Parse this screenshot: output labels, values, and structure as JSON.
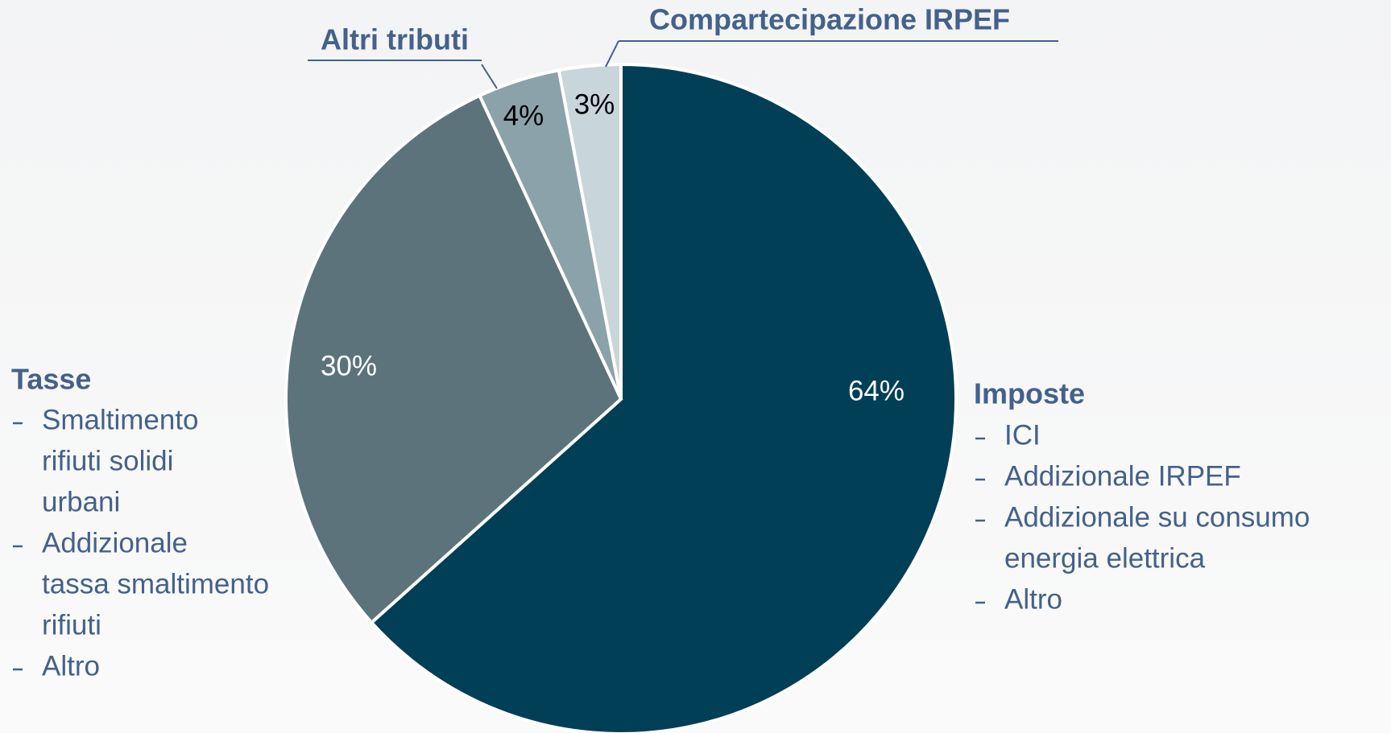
{
  "chart_data": {
    "type": "pie",
    "series": [
      {
        "name": "Imposte",
        "color": "#003f56",
        "values": [
          64
        ],
        "value_labels": [
          "64%"
        ],
        "details": [
          [
            "ICI"
          ],
          [
            "Addizionale IRPEF"
          ],
          [
            "Addizionale su consumo",
            "energia elettrica"
          ],
          [
            "Altro"
          ]
        ]
      },
      {
        "name": "Tasse",
        "color": "#5c737c",
        "values": [
          30
        ],
        "value_labels": [
          "30%"
        ],
        "details": [
          [
            "Smaltimento",
            "rifiuti solidi",
            "urbani"
          ],
          [
            "Addizionale",
            "tassa smaltimento",
            "rifiuti"
          ],
          [
            "Altro"
          ]
        ]
      },
      {
        "name": "Altri tributi",
        "color": "#8ca2ab",
        "values": [
          4
        ],
        "value_labels": [
          "4%"
        ]
      },
      {
        "name": "Compartecipazione IRPEF",
        "color": "#c8d5da",
        "values": [
          3
        ],
        "value_labels": [
          "3%"
        ]
      }
    ]
  }
}
